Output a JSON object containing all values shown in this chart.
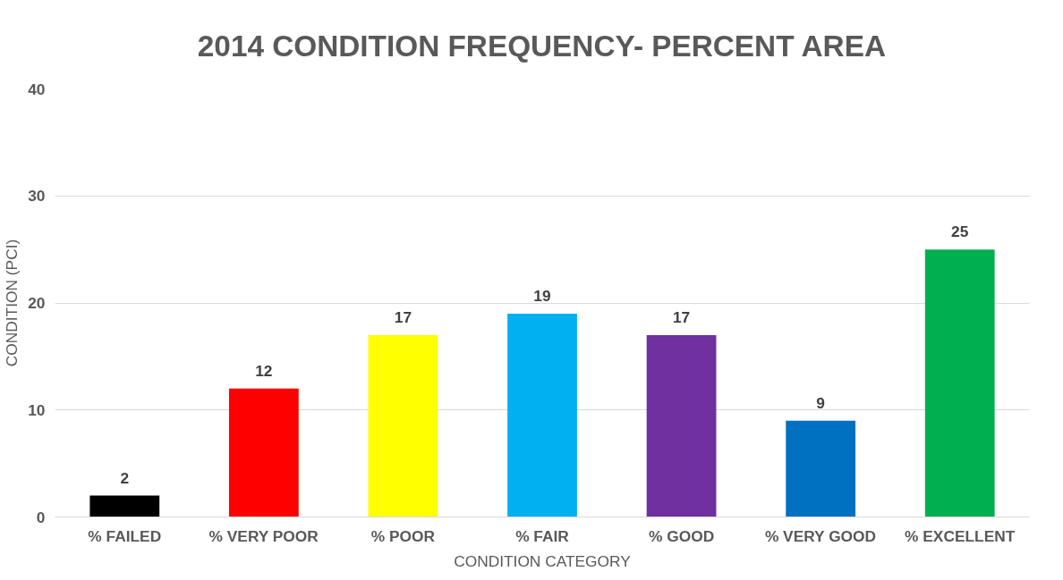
{
  "chart_data": {
    "type": "bar",
    "title": "2014 CONDITION FREQUENCY- PERCENT AREA",
    "xlabel": "CONDITION CATEGORY",
    "ylabel": "CONDITION (PCI)",
    "categories": [
      "% FAILED",
      "% VERY POOR",
      "% POOR",
      "% FAIR",
      "% GOOD",
      "% VERY GOOD",
      "% EXCELLENT"
    ],
    "values": [
      2,
      12,
      17,
      19,
      17,
      9,
      25
    ],
    "colors": [
      "#000000",
      "#ff0000",
      "#ffff00",
      "#00b0f0",
      "#7030a0",
      "#0070c0",
      "#00b050"
    ],
    "ylim": [
      0,
      40
    ],
    "yticks": [
      0,
      10,
      20,
      30,
      40
    ],
    "grid": "y",
    "data_labels": true
  }
}
